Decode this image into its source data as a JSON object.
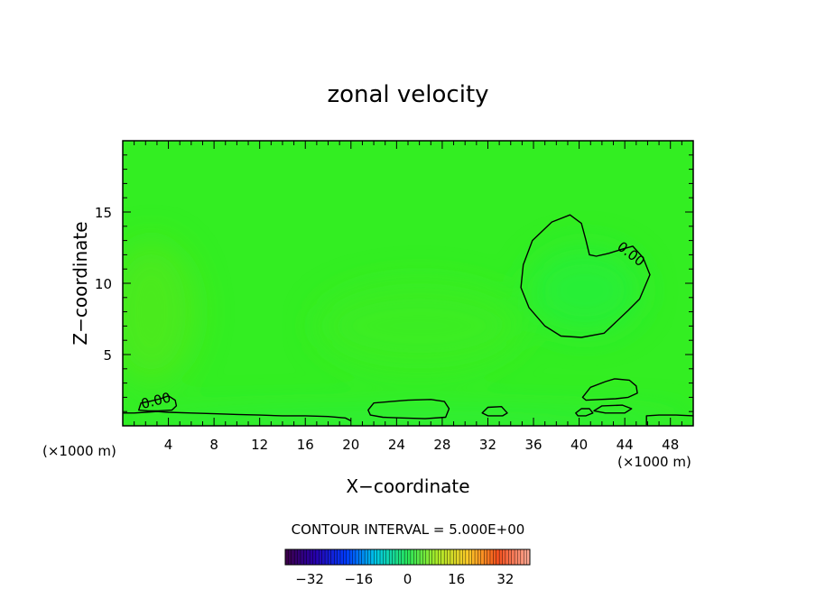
{
  "chart_data": {
    "type": "heatmap",
    "title": "zonal velocity",
    "xlabel": "X−coordinate",
    "ylabel": "Z−coordinate",
    "x_unit_left": "(×1000 m)",
    "x_unit_right": "(×1000 m)",
    "xlim": [
      0,
      50
    ],
    "ylim": [
      0,
      20
    ],
    "x_ticks": [
      4,
      8,
      12,
      16,
      20,
      24,
      28,
      32,
      36,
      40,
      44,
      48
    ],
    "y_ticks": [
      5,
      10,
      15
    ],
    "contour_interval_text": "CONTOUR INTERVAL = 5.000E+00",
    "contour_label": "0.00",
    "colorbar": {
      "min": -40,
      "max": 40,
      "ticks": [
        -32,
        -16,
        0,
        16,
        32
      ],
      "tick_labels": [
        "−32",
        "−16",
        "0",
        "16",
        "32"
      ]
    },
    "field_range": [
      -2,
      2
    ],
    "contours": [
      {
        "level": 0,
        "closed": true,
        "points": [
          [
            42.2,
            6.5
          ],
          [
            44.3,
            8.1
          ],
          [
            45.3,
            8.9
          ],
          [
            46.2,
            10.6
          ],
          [
            45.6,
            11.8
          ],
          [
            44.7,
            12.6
          ],
          [
            43.8,
            12.4
          ],
          [
            42.6,
            12.1
          ],
          [
            41.5,
            11.9
          ],
          [
            40.9,
            12.0
          ],
          [
            40.6,
            13.0
          ],
          [
            40.2,
            14.2
          ],
          [
            39.2,
            14.8
          ],
          [
            37.6,
            14.3
          ],
          [
            35.9,
            13.0
          ],
          [
            35.1,
            11.3
          ],
          [
            34.9,
            9.7
          ],
          [
            35.6,
            8.3
          ],
          [
            37.0,
            7.0
          ],
          [
            38.4,
            6.3
          ],
          [
            40.2,
            6.2
          ]
        ]
      },
      {
        "level": 0,
        "closed": false,
        "points": [
          [
            0.0,
            0.9
          ],
          [
            1.0,
            0.9
          ],
          [
            2.0,
            0.95
          ],
          [
            3.0,
            1.0
          ],
          [
            4.0,
            0.95
          ],
          [
            6.0,
            0.9
          ],
          [
            8.0,
            0.85
          ],
          [
            10.0,
            0.8
          ],
          [
            12.0,
            0.75
          ],
          [
            14.0,
            0.7
          ],
          [
            16.0,
            0.7
          ],
          [
            18.0,
            0.65
          ],
          [
            19.5,
            0.55
          ],
          [
            20.0,
            0.35
          ]
        ]
      },
      {
        "level": 0,
        "closed": true,
        "points": [
          [
            1.4,
            1.1
          ],
          [
            1.6,
            1.6
          ],
          [
            2.3,
            1.7
          ],
          [
            3.3,
            1.9
          ],
          [
            4.0,
            2.1
          ],
          [
            4.6,
            1.8
          ],
          [
            4.7,
            1.4
          ],
          [
            4.3,
            1.1
          ],
          [
            3.1,
            1.05
          ],
          [
            2.2,
            1.05
          ]
        ]
      },
      {
        "level": 0,
        "closed": true,
        "points": [
          [
            21.5,
            1.1
          ],
          [
            22.0,
            1.6
          ],
          [
            23.5,
            1.7
          ],
          [
            25.0,
            1.8
          ],
          [
            27.0,
            1.85
          ],
          [
            28.2,
            1.7
          ],
          [
            28.6,
            1.2
          ],
          [
            28.3,
            0.6
          ],
          [
            26.5,
            0.5
          ],
          [
            24.5,
            0.55
          ],
          [
            22.8,
            0.6
          ],
          [
            21.7,
            0.75
          ]
        ]
      },
      {
        "level": 0,
        "closed": true,
        "points": [
          [
            31.5,
            0.9
          ],
          [
            32.0,
            1.3
          ],
          [
            33.2,
            1.35
          ],
          [
            33.7,
            0.9
          ],
          [
            33.3,
            0.7
          ],
          [
            32.0,
            0.7
          ]
        ]
      },
      {
        "level": 0,
        "closed": true,
        "points": [
          [
            40.3,
            2.0
          ],
          [
            41.0,
            2.7
          ],
          [
            42.3,
            3.1
          ],
          [
            43.1,
            3.3
          ],
          [
            44.4,
            3.2
          ],
          [
            45.0,
            2.8
          ],
          [
            45.1,
            2.3
          ],
          [
            44.3,
            2.0
          ],
          [
            43.2,
            1.9
          ],
          [
            41.8,
            1.85
          ],
          [
            40.6,
            1.8
          ]
        ]
      },
      {
        "level": 0,
        "closed": true,
        "points": [
          [
            39.7,
            0.9
          ],
          [
            40.2,
            1.2
          ],
          [
            40.9,
            1.2
          ],
          [
            41.2,
            0.9
          ],
          [
            40.6,
            0.7
          ],
          [
            39.9,
            0.7
          ]
        ]
      },
      {
        "level": 0,
        "closed": true,
        "points": [
          [
            41.3,
            1.05
          ],
          [
            42.0,
            1.4
          ],
          [
            43.8,
            1.45
          ],
          [
            44.6,
            1.2
          ],
          [
            44.0,
            0.9
          ],
          [
            42.3,
            0.9
          ]
        ]
      },
      {
        "level": 0,
        "closed": false,
        "points": [
          [
            45.9,
            0.05
          ],
          [
            45.9,
            0.7
          ],
          [
            47.0,
            0.75
          ],
          [
            48.5,
            0.75
          ],
          [
            50.0,
            0.7
          ]
        ]
      }
    ]
  }
}
